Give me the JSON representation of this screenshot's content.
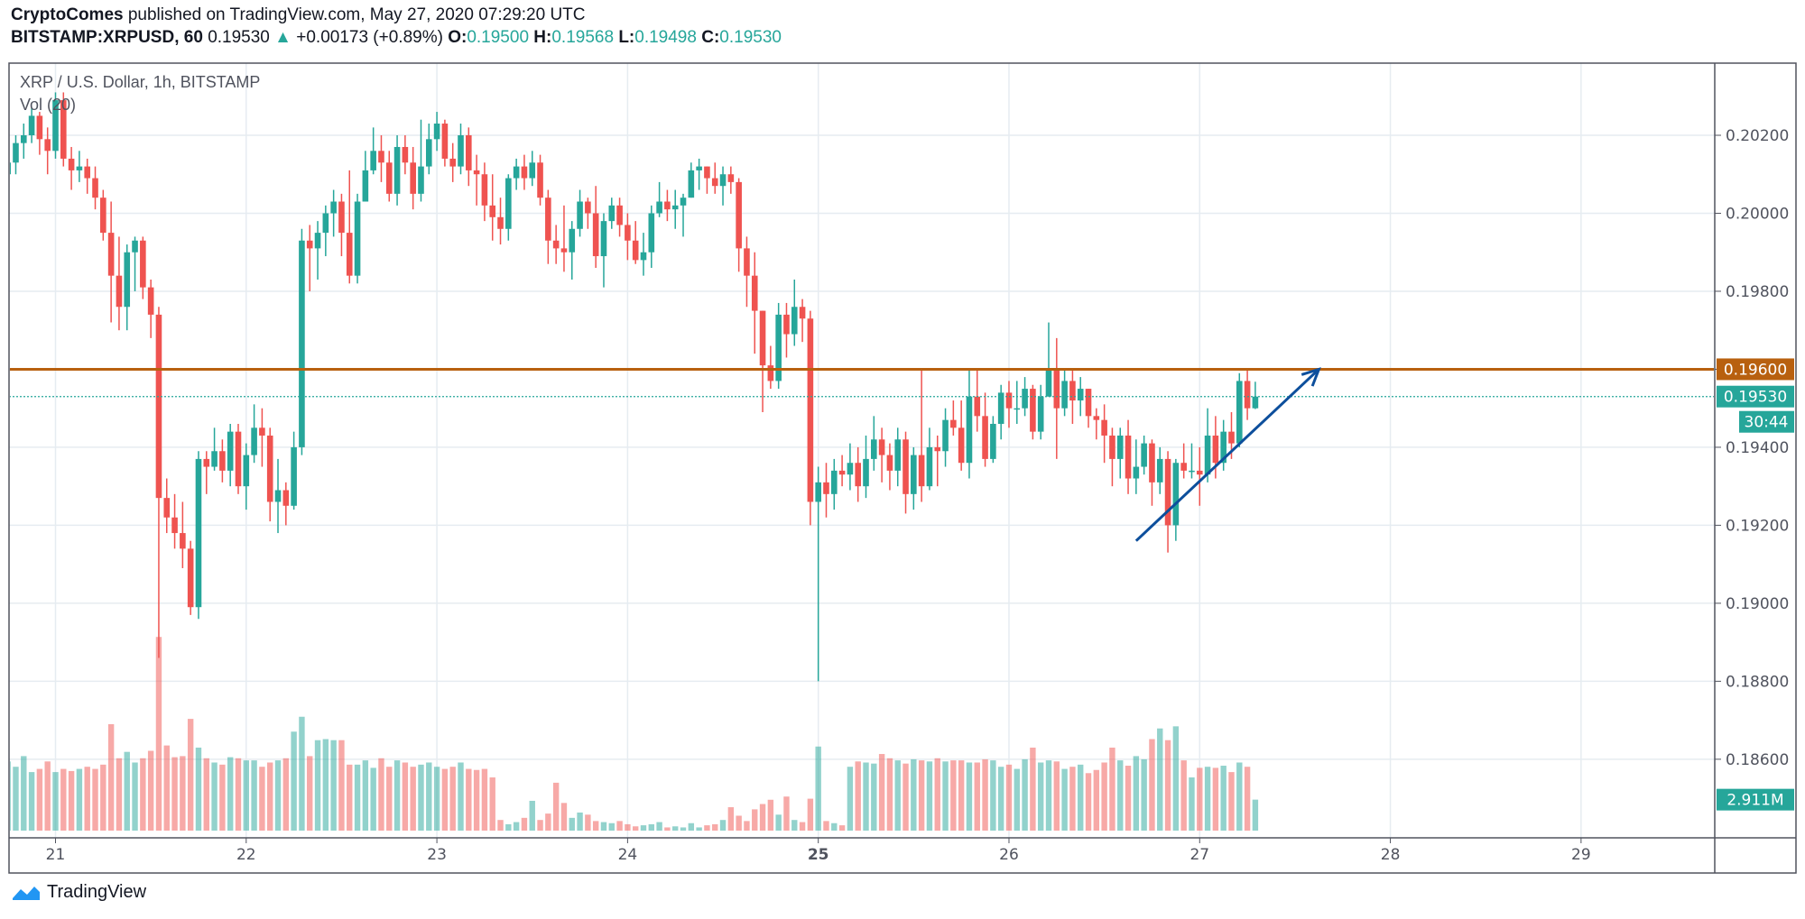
{
  "header": {
    "author": "CryptoComes",
    "published": "published on TradingView.com, May 27, 2020 07:29:20 UTC",
    "symbol": "BITSTAMP:XRPUSD, 60",
    "last": "0.19530",
    "change": "+0.00173 (+0.89%)",
    "o_label": "O:",
    "o": "0.19500",
    "h_label": "H:",
    "h": "0.19568",
    "l_label": "L:",
    "l": "0.19498",
    "c_label": "C:",
    "c": "0.19530",
    "direction_icon": "triangle-up-icon"
  },
  "footer": {
    "brand": "TradingView",
    "logo_icon": "tradingview-logo-icon"
  },
  "chart_data": {
    "type": "candlestick",
    "title": "XRP / U.S. Dollar, 1h, BITSTAMP",
    "volume_label": "Vol (20)",
    "interval": "1h",
    "start": "2020-05-20 18:00",
    "colors": {
      "up": "#26a69a",
      "down": "#ef5350",
      "resistance": "#b8600f",
      "trendline": "#0d4f9c"
    },
    "ylim": [
      0.18417,
      0.20385
    ],
    "y_ticks": [
      "0.20200",
      "0.20000",
      "0.19800",
      "0.19600",
      "0.19400",
      "0.19200",
      "0.19000",
      "0.18800",
      "0.18600"
    ],
    "x_ticks": [
      "21",
      "22",
      "23",
      "24",
      "25",
      "26",
      "27",
      "28",
      "29"
    ],
    "grid": true,
    "resistance_level": {
      "price": 0.196,
      "label": "0.19600"
    },
    "last_price": {
      "price": 0.1953,
      "label": "0.19530",
      "countdown": "30:44"
    },
    "last_volume_label": "2.911M",
    "trendline": {
      "from": {
        "time": "2020-05-26 16:00",
        "price": 0.1916
      },
      "to": {
        "time": "2020-05-27 15:00",
        "price": 0.196
      },
      "arrow": true
    },
    "candles_fields": [
      "open",
      "high",
      "low",
      "close",
      "volume_millions"
    ],
    "candles": [
      [
        0.201,
        0.2017,
        0.2002,
        0.2013,
        6.5
      ],
      [
        0.2013,
        0.202,
        0.201,
        0.2018,
        6.0
      ],
      [
        0.2018,
        0.2023,
        0.2014,
        0.202,
        7.0
      ],
      [
        0.202,
        0.2027,
        0.2018,
        0.2025,
        5.5
      ],
      [
        0.2025,
        0.2026,
        0.2015,
        0.2019,
        5.8
      ],
      [
        0.2019,
        0.2022,
        0.201,
        0.2016,
        6.5
      ],
      [
        0.2016,
        0.2031,
        0.2014,
        0.2029,
        5.5
      ],
      [
        0.2029,
        0.2031,
        0.2012,
        0.2014,
        5.8
      ],
      [
        0.2014,
        0.2017,
        0.2006,
        0.2011,
        5.6
      ],
      [
        0.2011,
        0.2016,
        0.2008,
        0.2012,
        5.8
      ],
      [
        0.2012,
        0.2014,
        0.2005,
        0.2009,
        6.0
      ],
      [
        0.2009,
        0.2012,
        0.2001,
        0.2004,
        5.8
      ],
      [
        0.2004,
        0.2006,
        0.1993,
        0.1995,
        6.2
      ],
      [
        0.1995,
        0.2003,
        0.1972,
        0.1984,
        10.0
      ],
      [
        0.1984,
        0.1994,
        0.197,
        0.1976,
        6.8
      ],
      [
        0.1976,
        0.1992,
        0.197,
        0.199,
        7.4
      ],
      [
        0.199,
        0.1994,
        0.198,
        0.1993,
        6.4
      ],
      [
        0.1993,
        0.1994,
        0.1978,
        0.1981,
        6.8
      ],
      [
        0.1981,
        0.1983,
        0.1968,
        0.1974,
        7.5
      ],
      [
        0.1974,
        0.1976,
        0.1886,
        0.1927,
        18.2
      ],
      [
        0.1927,
        0.1932,
        0.1918,
        0.1922,
        8.0
      ],
      [
        0.1922,
        0.1928,
        0.1914,
        0.1918,
        6.9
      ],
      [
        0.1918,
        0.1926,
        0.1909,
        0.1914,
        7.0
      ],
      [
        0.1914,
        0.1916,
        0.1897,
        0.1899,
        10.5
      ],
      [
        0.1899,
        0.1939,
        0.1896,
        0.1937,
        7.8
      ],
      [
        0.1937,
        0.1939,
        0.1928,
        0.1935,
        6.8
      ],
      [
        0.1935,
        0.1945,
        0.1934,
        0.1939,
        6.4
      ],
      [
        0.1939,
        0.1942,
        0.1931,
        0.1934,
        6.2
      ],
      [
        0.1934,
        0.1946,
        0.193,
        0.1944,
        6.9
      ],
      [
        0.1944,
        0.1946,
        0.1928,
        0.193,
        6.8
      ],
      [
        0.193,
        0.1941,
        0.1924,
        0.1938,
        6.6
      ],
      [
        0.1938,
        0.1951,
        0.1936,
        0.1945,
        6.6
      ],
      [
        0.1945,
        0.195,
        0.1935,
        0.1943,
        6.0
      ],
      [
        0.1943,
        0.1945,
        0.1921,
        0.1926,
        6.4
      ],
      [
        0.1926,
        0.1937,
        0.1918,
        0.1929,
        6.6
      ],
      [
        0.1929,
        0.1931,
        0.192,
        0.1925,
        6.8
      ],
      [
        0.1925,
        0.1944,
        0.1924,
        0.194,
        9.3
      ],
      [
        0.194,
        0.1996,
        0.1938,
        0.1993,
        10.7
      ],
      [
        0.1993,
        0.1997,
        0.198,
        0.1991,
        7.0
      ],
      [
        0.1991,
        0.1998,
        0.1983,
        0.1995,
        8.5
      ],
      [
        0.1995,
        0.2002,
        0.1989,
        0.2,
        8.6
      ],
      [
        0.2,
        0.2006,
        0.1994,
        0.2003,
        8.5
      ],
      [
        0.2003,
        0.2005,
        0.1989,
        0.1995,
        8.5
      ],
      [
        0.1995,
        0.2011,
        0.1982,
        0.1984,
        6.2
      ],
      [
        0.1984,
        0.2005,
        0.1982,
        0.2003,
        6.2
      ],
      [
        0.2003,
        0.2016,
        0.2004,
        0.2011,
        6.6
      ],
      [
        0.2011,
        0.2022,
        0.201,
        0.2016,
        5.9
      ],
      [
        0.2016,
        0.202,
        0.2008,
        0.2013,
        6.8
      ],
      [
        0.2013,
        0.2016,
        0.2003,
        0.2005,
        6.0
      ],
      [
        0.2005,
        0.202,
        0.2002,
        0.2017,
        6.6
      ],
      [
        0.2017,
        0.202,
        0.201,
        0.2013,
        6.4
      ],
      [
        0.2013,
        0.2017,
        0.2001,
        0.2005,
        6.0
      ],
      [
        0.2005,
        0.2024,
        0.2003,
        0.2012,
        6.2
      ],
      [
        0.2012,
        0.2023,
        0.201,
        0.2019,
        6.4
      ],
      [
        0.2019,
        0.2026,
        0.2016,
        0.2023,
        6.0
      ],
      [
        0.2023,
        0.2024,
        0.2012,
        0.2014,
        5.8
      ],
      [
        0.2014,
        0.2018,
        0.2008,
        0.2012,
        6.0
      ],
      [
        0.2012,
        0.2023,
        0.201,
        0.202,
        6.4
      ],
      [
        0.202,
        0.2022,
        0.2007,
        0.2011,
        5.8
      ],
      [
        0.2011,
        0.2015,
        0.2002,
        0.201,
        5.7
      ],
      [
        0.201,
        0.2013,
        0.1998,
        0.2002,
        5.8
      ],
      [
        0.2002,
        0.201,
        0.1993,
        0.1999,
        5.0
      ],
      [
        0.1999,
        0.2004,
        0.1992,
        0.1996,
        1.0
      ],
      [
        0.1996,
        0.201,
        0.1993,
        0.2009,
        0.6
      ],
      [
        0.2009,
        0.2014,
        0.2006,
        0.2012,
        0.8
      ],
      [
        0.2012,
        0.2015,
        0.2006,
        0.2009,
        1.2
      ],
      [
        0.2009,
        0.2016,
        0.2007,
        0.2013,
        2.8
      ],
      [
        0.2013,
        0.2015,
        0.2002,
        0.2004,
        1.0
      ],
      [
        0.2004,
        0.2006,
        0.1987,
        0.1993,
        1.6
      ],
      [
        0.1993,
        0.1997,
        0.1987,
        0.1991,
        4.5
      ],
      [
        0.1991,
        0.2002,
        0.1985,
        0.199,
        2.6
      ],
      [
        0.199,
        0.1998,
        0.1983,
        0.1996,
        1.2
      ],
      [
        0.1996,
        0.2006,
        0.1994,
        0.2003,
        1.7
      ],
      [
        0.2003,
        0.2004,
        0.1996,
        0.2,
        1.5
      ],
      [
        0.2,
        0.2007,
        0.1986,
        0.1989,
        0.9
      ],
      [
        0.1989,
        0.2,
        0.1981,
        0.1998,
        0.8
      ],
      [
        0.1998,
        0.2004,
        0.1996,
        0.2002,
        0.7
      ],
      [
        0.2002,
        0.2004,
        0.1994,
        0.1997,
        0.9
      ],
      [
        0.1997,
        0.2,
        0.1988,
        0.1993,
        0.6
      ],
      [
        0.1993,
        0.1998,
        0.1987,
        0.1988,
        0.4
      ],
      [
        0.1988,
        0.1995,
        0.1984,
        0.199,
        0.5
      ],
      [
        0.199,
        0.2002,
        0.1986,
        0.2,
        0.6
      ],
      [
        0.2,
        0.2008,
        0.1999,
        0.2003,
        0.8
      ],
      [
        0.2003,
        0.2006,
        0.1998,
        0.2001,
        0.3
      ],
      [
        0.2001,
        0.2006,
        0.1996,
        0.2002,
        0.4
      ],
      [
        0.2002,
        0.2005,
        0.1994,
        0.2004,
        0.3
      ],
      [
        0.2004,
        0.2013,
        0.2004,
        0.2011,
        0.7
      ],
      [
        0.2011,
        0.2014,
        0.2006,
        0.2012,
        0.3
      ],
      [
        0.2012,
        0.2012,
        0.2005,
        0.2009,
        0.5
      ],
      [
        0.2009,
        0.2013,
        0.2005,
        0.2007,
        0.6
      ],
      [
        0.2007,
        0.2012,
        0.2002,
        0.201,
        1.0
      ],
      [
        0.201,
        0.2012,
        0.2005,
        0.2008,
        2.2
      ],
      [
        0.2008,
        0.2009,
        0.1985,
        0.1991,
        1.4
      ],
      [
        0.1991,
        0.1994,
        0.1976,
        0.1984,
        0.9
      ],
      [
        0.1984,
        0.199,
        0.1964,
        0.1975,
        2.0
      ],
      [
        0.1975,
        0.1975,
        0.1949,
        0.1961,
        2.5
      ],
      [
        0.1961,
        0.1966,
        0.1955,
        0.1957,
        2.9
      ],
      [
        0.1957,
        0.1977,
        0.1955,
        0.1974,
        1.5
      ],
      [
        0.1974,
        0.1977,
        0.1963,
        0.1969,
        3.2
      ],
      [
        0.1969,
        0.1983,
        0.1966,
        0.1976,
        1.0
      ],
      [
        0.1976,
        0.1978,
        0.1967,
        0.1973,
        0.8
      ],
      [
        0.1973,
        0.1975,
        0.192,
        0.1926,
        3.0
      ],
      [
        0.1926,
        0.1935,
        0.188,
        0.1931,
        7.9
      ],
      [
        0.1931,
        0.1936,
        0.1922,
        0.1928,
        0.9
      ],
      [
        0.1928,
        0.1937,
        0.1924,
        0.1934,
        0.7
      ],
      [
        0.1934,
        0.1938,
        0.193,
        0.1933,
        0.5
      ],
      [
        0.1933,
        0.1941,
        0.1929,
        0.1936,
        6.0
      ],
      [
        0.1936,
        0.194,
        0.1926,
        0.193,
        6.5
      ],
      [
        0.193,
        0.1943,
        0.1927,
        0.1937,
        6.4
      ],
      [
        0.1937,
        0.1948,
        0.1934,
        0.1942,
        6.3
      ],
      [
        0.1942,
        0.1945,
        0.1931,
        0.1938,
        7.2
      ],
      [
        0.1938,
        0.1941,
        0.1929,
        0.1934,
        6.8
      ],
      [
        0.1934,
        0.1945,
        0.193,
        0.1942,
        6.6
      ],
      [
        0.1942,
        0.1944,
        0.1923,
        0.1928,
        6.3
      ],
      [
        0.1928,
        0.194,
        0.1924,
        0.1938,
        6.7
      ],
      [
        0.1938,
        0.196,
        0.1926,
        0.193,
        6.6
      ],
      [
        0.193,
        0.1945,
        0.1929,
        0.194,
        6.5
      ],
      [
        0.194,
        0.1943,
        0.193,
        0.1939,
        6.8
      ],
      [
        0.1939,
        0.195,
        0.1935,
        0.1947,
        6.5
      ],
      [
        0.1947,
        0.1952,
        0.1943,
        0.1945,
        6.6
      ],
      [
        0.1945,
        0.1952,
        0.1934,
        0.1936,
        6.6
      ],
      [
        0.1936,
        0.196,
        0.1932,
        0.1953,
        6.4
      ],
      [
        0.1953,
        0.196,
        0.1944,
        0.1948,
        6.4
      ],
      [
        0.1948,
        0.1954,
        0.1935,
        0.1937,
        6.7
      ],
      [
        0.1937,
        0.1948,
        0.1936,
        0.1946,
        6.6
      ],
      [
        0.1946,
        0.1956,
        0.1942,
        0.1954,
        6.0
      ],
      [
        0.1954,
        0.1957,
        0.1945,
        0.195,
        6.2
      ],
      [
        0.195,
        0.1957,
        0.1946,
        0.195,
        5.8
      ],
      [
        0.195,
        0.1958,
        0.1948,
        0.1955,
        6.7
      ],
      [
        0.1955,
        0.1956,
        0.1942,
        0.1944,
        7.8
      ],
      [
        0.1944,
        0.1956,
        0.1942,
        0.1953,
        6.4
      ],
      [
        0.1953,
        0.1972,
        0.1953,
        0.196,
        6.6
      ],
      [
        0.196,
        0.1968,
        0.1937,
        0.195,
        6.5
      ],
      [
        0.195,
        0.196,
        0.1948,
        0.1957,
        5.8
      ],
      [
        0.1957,
        0.196,
        0.1946,
        0.1952,
        6.0
      ],
      [
        0.1952,
        0.1958,
        0.1948,
        0.1955,
        6.2
      ],
      [
        0.1955,
        0.1955,
        0.1945,
        0.1948,
        5.4
      ],
      [
        0.1948,
        0.195,
        0.1942,
        0.1947,
        5.7
      ],
      [
        0.1947,
        0.1951,
        0.1936,
        0.1943,
        6.4
      ],
      [
        0.1943,
        0.1945,
        0.193,
        0.1937,
        7.8
      ],
      [
        0.1937,
        0.1945,
        0.1932,
        0.1943,
        6.6
      ],
      [
        0.1943,
        0.1947,
        0.1928,
        0.1932,
        6.1
      ],
      [
        0.1932,
        0.1942,
        0.1928,
        0.1935,
        7.0
      ],
      [
        0.1935,
        0.1943,
        0.1933,
        0.1941,
        6.7
      ],
      [
        0.1941,
        0.1942,
        0.1925,
        0.1931,
        8.6
      ],
      [
        0.1931,
        0.194,
        0.1928,
        0.1937,
        9.6
      ],
      [
        0.1937,
        0.1939,
        0.1913,
        0.192,
        8.5
      ],
      [
        0.192,
        0.1937,
        0.1916,
        0.1936,
        9.8
      ],
      [
        0.1936,
        0.1941,
        0.1932,
        0.1934,
        6.6
      ],
      [
        0.1934,
        0.1941,
        0.1932,
        0.1934,
        5.0
      ],
      [
        0.1934,
        0.194,
        0.1925,
        0.1933,
        5.9
      ],
      [
        0.1933,
        0.195,
        0.1931,
        0.1943,
        6.0
      ],
      [
        0.1943,
        0.1948,
        0.1932,
        0.1936,
        5.9
      ],
      [
        0.1936,
        0.1947,
        0.1934,
        0.1944,
        6.1
      ],
      [
        0.1944,
        0.1949,
        0.1937,
        0.1941,
        5.5
      ],
      [
        0.1941,
        0.1959,
        0.194,
        0.1957,
        6.4
      ],
      [
        0.1957,
        0.196,
        0.1947,
        0.195,
        6.0
      ],
      [
        0.195,
        0.19568,
        0.19498,
        0.1953,
        2.911
      ]
    ]
  }
}
